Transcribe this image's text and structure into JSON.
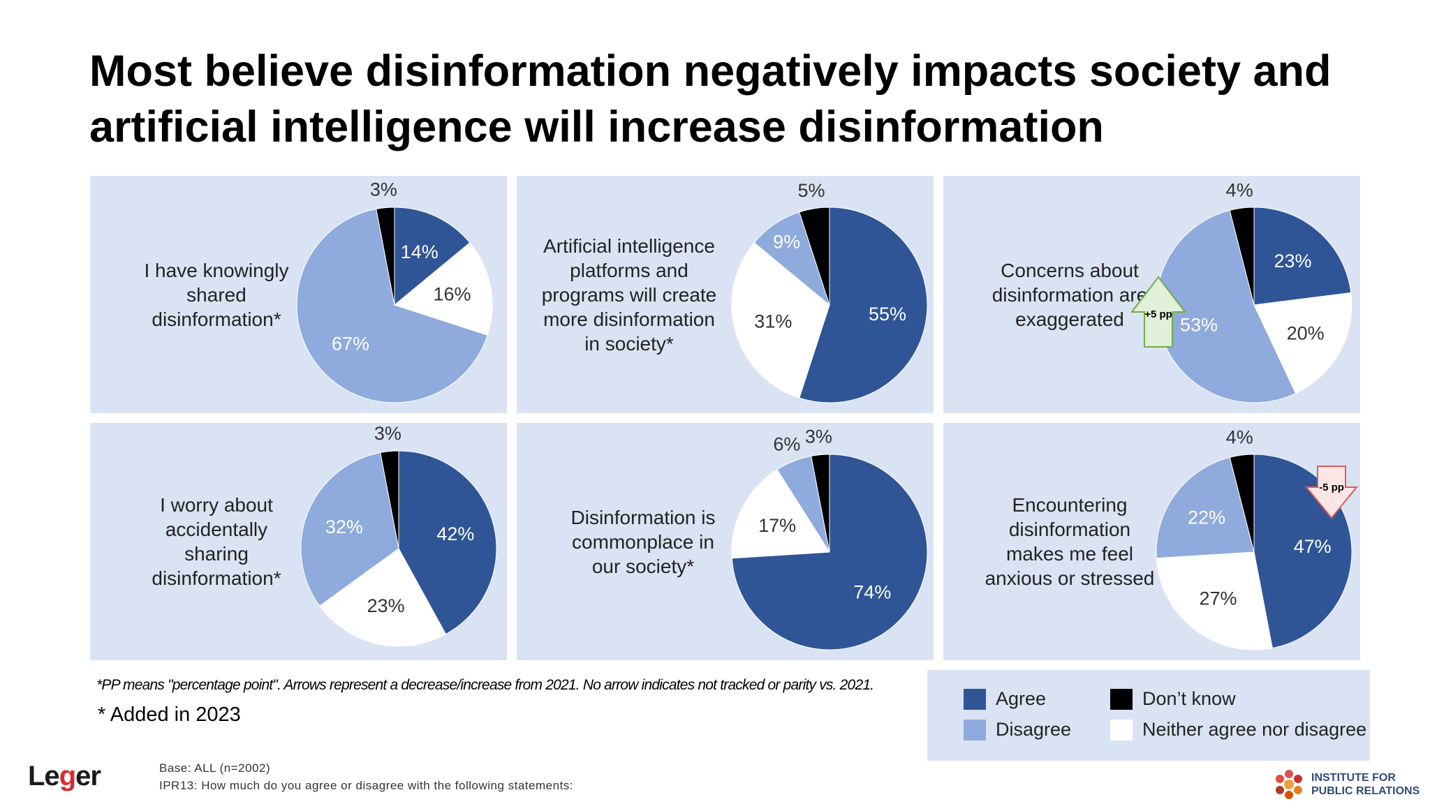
{
  "title_line1": "Most believe disinformation negatively impacts society and",
  "title_line2": "artificial intelligence will increase disinformation",
  "colors": {
    "agree": "#2f5597",
    "disagree": "#8faadc",
    "dont_know": "#000000",
    "neither": "#ffffff",
    "panel_bg": "#dae3f3"
  },
  "chart_data": [
    {
      "type": "pie",
      "statement": "I have knowingly\nshared\ndisinformation*",
      "slices": [
        {
          "name": "Agree",
          "value": 14
        },
        {
          "name": "Neither agree nor disagree",
          "value": 16
        },
        {
          "name": "Disagree",
          "value": 67
        },
        {
          "name": "Don’t know",
          "value": 3
        }
      ],
      "labels": [
        "14%",
        "16%",
        "67%",
        "3%"
      ]
    },
    {
      "type": "pie",
      "statement": "Artificial intelligence\nplatforms and\nprograms will create\nmore disinformation\nin society*",
      "slices": [
        {
          "name": "Agree",
          "value": 55
        },
        {
          "name": "Neither agree nor disagree",
          "value": 31
        },
        {
          "name": "Disagree",
          "value": 9
        },
        {
          "name": "Don’t know",
          "value": 5
        }
      ],
      "labels": [
        "55%",
        "31%",
        "9%",
        "5%"
      ]
    },
    {
      "type": "pie",
      "statement": "Concerns about\ndisinformation are\nexaggerated",
      "slices": [
        {
          "name": "Agree",
          "value": 23
        },
        {
          "name": "Neither agree nor disagree",
          "value": 20
        },
        {
          "name": "Disagree",
          "value": 53
        },
        {
          "name": "Don’t know",
          "value": 4
        }
      ],
      "labels": [
        "23%",
        "20%",
        "53%",
        "4%"
      ],
      "change": {
        "label": "+5 pp",
        "direction": "up",
        "value": 5
      }
    },
    {
      "type": "pie",
      "statement": "I worry about\naccidentally\nsharing\ndisinformation*",
      "slices": [
        {
          "name": "Agree",
          "value": 42
        },
        {
          "name": "Neither agree nor disagree",
          "value": 23
        },
        {
          "name": "Disagree",
          "value": 32
        },
        {
          "name": "Don’t know",
          "value": 3
        }
      ],
      "labels": [
        "42%",
        "23%",
        "32%",
        "3%"
      ]
    },
    {
      "type": "pie",
      "statement": "Disinformation is\ncommonplace in\nour society*",
      "slices": [
        {
          "name": "Agree",
          "value": 74
        },
        {
          "name": "Neither agree nor disagree",
          "value": 17
        },
        {
          "name": "Disagree",
          "value": 6
        },
        {
          "name": "Don’t know",
          "value": 3
        }
      ],
      "labels": [
        "74%",
        "17%",
        "6%",
        "3%"
      ]
    },
    {
      "type": "pie",
      "statement": "Encountering\ndisinformation\nmakes me feel\nanxious or stressed",
      "slices": [
        {
          "name": "Agree",
          "value": 47
        },
        {
          "name": "Neither agree nor disagree",
          "value": 27
        },
        {
          "name": "Disagree",
          "value": 22
        },
        {
          "name": "Don’t know",
          "value": 4
        }
      ],
      "labels": [
        "47%",
        "27%",
        "22%",
        "4%"
      ],
      "change": {
        "label": "-5 pp",
        "direction": "down",
        "value": -5
      }
    }
  ],
  "footnote": "*PP means \"percentage point\". Arrows represent a decrease/increase from 2021. No arrow indicates not tracked or parity vs. 2021.",
  "added_note": "* Added in 2023",
  "legend": {
    "agree": "Agree",
    "disagree": "Disagree",
    "dont_know": "Don’t know",
    "neither": "Neither agree nor disagree"
  },
  "logo_leger_pre": "Le",
  "logo_leger_g": "g",
  "logo_leger_post": "er",
  "base_line": "Base: ALL (n=2002)",
  "question_line": "IPR13: How much do you agree or disagree with the following statements:",
  "ipr_line1": "INSTITUTE FOR",
  "ipr_line2": "PUBLIC RELATIONS"
}
